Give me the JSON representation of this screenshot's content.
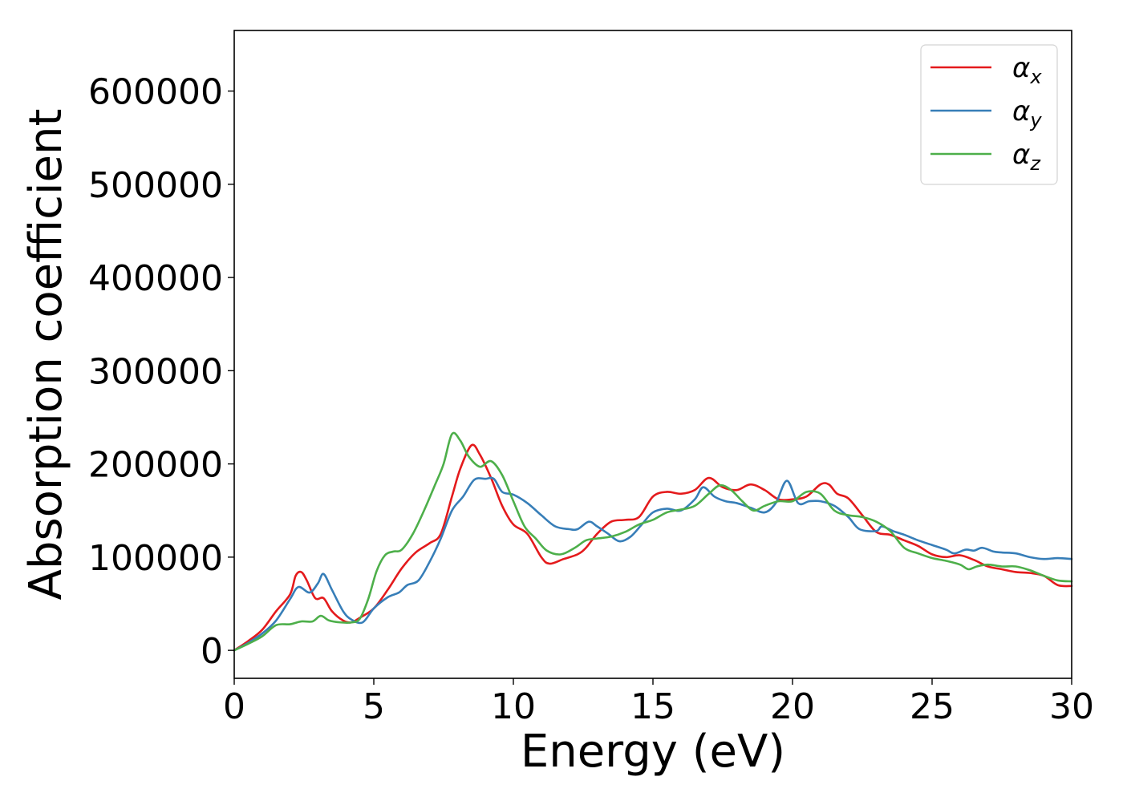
{
  "chart_data": {
    "type": "line",
    "title": "",
    "xlabel": "Energy (eV)",
    "ylabel": "Absorption coefficient",
    "xlim": [
      0,
      30
    ],
    "ylim": [
      -30000,
      665000
    ],
    "x_ticks": [
      0,
      5,
      10,
      15,
      20,
      25,
      30
    ],
    "x_tick_labels": [
      "0",
      "5",
      "10",
      "15",
      "20",
      "25",
      "30"
    ],
    "y_ticks": [
      0,
      100000,
      200000,
      300000,
      400000,
      500000,
      600000
    ],
    "y_tick_labels": [
      "0",
      "100000",
      "200000",
      "300000",
      "400000",
      "500000",
      "600000"
    ],
    "grid": false,
    "legend": {
      "placement": "top-right",
      "entries": [
        {
          "base": "α",
          "sub": "x",
          "color": "#e41a1c"
        },
        {
          "base": "α",
          "sub": "y",
          "color": "#377eb8"
        },
        {
          "base": "α",
          "sub": "z",
          "color": "#4daf4a"
        }
      ]
    },
    "series": [
      {
        "name": "αx",
        "color": "#e41a1c",
        "points": [
          [
            0,
            0
          ],
          [
            0.5,
            10000
          ],
          [
            1,
            22000
          ],
          [
            1.5,
            42000
          ],
          [
            2,
            60000
          ],
          [
            2.2,
            80000
          ],
          [
            2.4,
            84000
          ],
          [
            2.6,
            75000
          ],
          [
            2.9,
            56000
          ],
          [
            3.2,
            56000
          ],
          [
            3.5,
            42000
          ],
          [
            3.9,
            32000
          ],
          [
            4.2,
            30000
          ],
          [
            4.5,
            35000
          ],
          [
            5,
            45000
          ],
          [
            5.5,
            65000
          ],
          [
            6,
            88000
          ],
          [
            6.5,
            105000
          ],
          [
            7,
            115000
          ],
          [
            7.4,
            125000
          ],
          [
            7.8,
            165000
          ],
          [
            8.1,
            195000
          ],
          [
            8.5,
            220000
          ],
          [
            8.8,
            210000
          ],
          [
            9.2,
            185000
          ],
          [
            9.6,
            155000
          ],
          [
            10,
            135000
          ],
          [
            10.5,
            125000
          ],
          [
            11,
            100000
          ],
          [
            11.3,
            93000
          ],
          [
            11.8,
            98000
          ],
          [
            12.3,
            103000
          ],
          [
            12.6,
            110000
          ],
          [
            13,
            125000
          ],
          [
            13.5,
            138000
          ],
          [
            14,
            140000
          ],
          [
            14.5,
            143000
          ],
          [
            15,
            165000
          ],
          [
            15.5,
            170000
          ],
          [
            16,
            168000
          ],
          [
            16.5,
            172000
          ],
          [
            17,
            185000
          ],
          [
            17.5,
            175000
          ],
          [
            18,
            172000
          ],
          [
            18.5,
            178000
          ],
          [
            19,
            172000
          ],
          [
            19.5,
            162000
          ],
          [
            20,
            162000
          ],
          [
            20.5,
            165000
          ],
          [
            21,
            178000
          ],
          [
            21.3,
            178000
          ],
          [
            21.6,
            168000
          ],
          [
            22,
            163000
          ],
          [
            22.5,
            145000
          ],
          [
            23,
            127000
          ],
          [
            23.5,
            124000
          ],
          [
            24,
            118000
          ],
          [
            24.5,
            112000
          ],
          [
            25,
            103000
          ],
          [
            25.5,
            100000
          ],
          [
            26,
            102000
          ],
          [
            26.5,
            97000
          ],
          [
            27,
            90000
          ],
          [
            27.5,
            87000
          ],
          [
            28,
            84000
          ],
          [
            28.5,
            83000
          ],
          [
            29,
            80000
          ],
          [
            29.5,
            70000
          ],
          [
            30,
            69000
          ]
        ]
      },
      {
        "name": "αy",
        "color": "#377eb8",
        "points": [
          [
            0,
            0
          ],
          [
            0.5,
            8000
          ],
          [
            1,
            18000
          ],
          [
            1.5,
            32000
          ],
          [
            2,
            55000
          ],
          [
            2.3,
            68000
          ],
          [
            2.7,
            62000
          ],
          [
            3,
            72000
          ],
          [
            3.2,
            82000
          ],
          [
            3.5,
            65000
          ],
          [
            3.9,
            42000
          ],
          [
            4.2,
            33000
          ],
          [
            4.6,
            30000
          ],
          [
            5,
            45000
          ],
          [
            5.5,
            57000
          ],
          [
            5.9,
            62000
          ],
          [
            6.2,
            70000
          ],
          [
            6.6,
            75000
          ],
          [
            7,
            95000
          ],
          [
            7.4,
            120000
          ],
          [
            7.8,
            150000
          ],
          [
            8.2,
            165000
          ],
          [
            8.6,
            183000
          ],
          [
            9,
            184000
          ],
          [
            9.3,
            184000
          ],
          [
            9.6,
            170000
          ],
          [
            10,
            167000
          ],
          [
            10.5,
            158000
          ],
          [
            11,
            145000
          ],
          [
            11.5,
            133000
          ],
          [
            12,
            130000
          ],
          [
            12.3,
            130000
          ],
          [
            12.7,
            138000
          ],
          [
            13,
            133000
          ],
          [
            13.4,
            125000
          ],
          [
            13.8,
            117000
          ],
          [
            14.2,
            122000
          ],
          [
            14.6,
            135000
          ],
          [
            15,
            148000
          ],
          [
            15.5,
            152000
          ],
          [
            16,
            150000
          ],
          [
            16.5,
            162000
          ],
          [
            16.8,
            175000
          ],
          [
            17.2,
            165000
          ],
          [
            17.6,
            160000
          ],
          [
            18,
            158000
          ],
          [
            18.5,
            153000
          ],
          [
            19,
            148000
          ],
          [
            19.4,
            158000
          ],
          [
            19.8,
            182000
          ],
          [
            20.2,
            158000
          ],
          [
            20.6,
            160000
          ],
          [
            21,
            160000
          ],
          [
            21.5,
            155000
          ],
          [
            22,
            143000
          ],
          [
            22.4,
            130000
          ],
          [
            23,
            128000
          ],
          [
            23.2,
            133000
          ],
          [
            23.6,
            128000
          ],
          [
            24,
            124000
          ],
          [
            24.5,
            118000
          ],
          [
            25,
            113000
          ],
          [
            25.5,
            108000
          ],
          [
            25.8,
            104000
          ],
          [
            26.2,
            108000
          ],
          [
            26.5,
            107000
          ],
          [
            26.8,
            110000
          ],
          [
            27.2,
            106000
          ],
          [
            27.5,
            105000
          ],
          [
            28,
            104000
          ],
          [
            28.5,
            100000
          ],
          [
            29,
            98000
          ],
          [
            29.5,
            99000
          ],
          [
            30,
            98000
          ]
        ]
      },
      {
        "name": "αz",
        "color": "#4daf4a",
        "points": [
          [
            0,
            0
          ],
          [
            0.5,
            7000
          ],
          [
            1,
            15000
          ],
          [
            1.5,
            27000
          ],
          [
            2,
            28000
          ],
          [
            2.4,
            31000
          ],
          [
            2.8,
            31000
          ],
          [
            3.1,
            37000
          ],
          [
            3.4,
            32000
          ],
          [
            3.8,
            30000
          ],
          [
            4.2,
            30000
          ],
          [
            4.5,
            34000
          ],
          [
            4.8,
            55000
          ],
          [
            5.1,
            85000
          ],
          [
            5.4,
            102000
          ],
          [
            5.7,
            106000
          ],
          [
            6,
            108000
          ],
          [
            6.4,
            125000
          ],
          [
            6.8,
            150000
          ],
          [
            7.2,
            178000
          ],
          [
            7.5,
            200000
          ],
          [
            7.8,
            232000
          ],
          [
            8.1,
            225000
          ],
          [
            8.4,
            208000
          ],
          [
            8.8,
            197000
          ],
          [
            9.2,
            203000
          ],
          [
            9.6,
            188000
          ],
          [
            10,
            160000
          ],
          [
            10.4,
            133000
          ],
          [
            10.8,
            120000
          ],
          [
            11.2,
            107000
          ],
          [
            11.7,
            103000
          ],
          [
            12.2,
            110000
          ],
          [
            12.6,
            118000
          ],
          [
            13,
            120000
          ],
          [
            13.5,
            122000
          ],
          [
            14,
            127000
          ],
          [
            14.5,
            135000
          ],
          [
            15,
            140000
          ],
          [
            15.5,
            148000
          ],
          [
            16,
            151000
          ],
          [
            16.5,
            155000
          ],
          [
            17,
            168000
          ],
          [
            17.4,
            177000
          ],
          [
            17.8,
            172000
          ],
          [
            18.2,
            160000
          ],
          [
            18.6,
            150000
          ],
          [
            19,
            155000
          ],
          [
            19.5,
            160000
          ],
          [
            20,
            160000
          ],
          [
            20.5,
            170000
          ],
          [
            21,
            168000
          ],
          [
            21.5,
            150000
          ],
          [
            22,
            145000
          ],
          [
            22.5,
            143000
          ],
          [
            23,
            138000
          ],
          [
            23.5,
            128000
          ],
          [
            24,
            110000
          ],
          [
            24.5,
            104000
          ],
          [
            25,
            99000
          ],
          [
            25.5,
            96000
          ],
          [
            26,
            92000
          ],
          [
            26.3,
            87000
          ],
          [
            26.6,
            90000
          ],
          [
            27,
            92000
          ],
          [
            27.5,
            90000
          ],
          [
            28,
            90000
          ],
          [
            28.5,
            86000
          ],
          [
            29,
            80000
          ],
          [
            29.5,
            75000
          ],
          [
            30,
            74000
          ]
        ]
      }
    ]
  }
}
